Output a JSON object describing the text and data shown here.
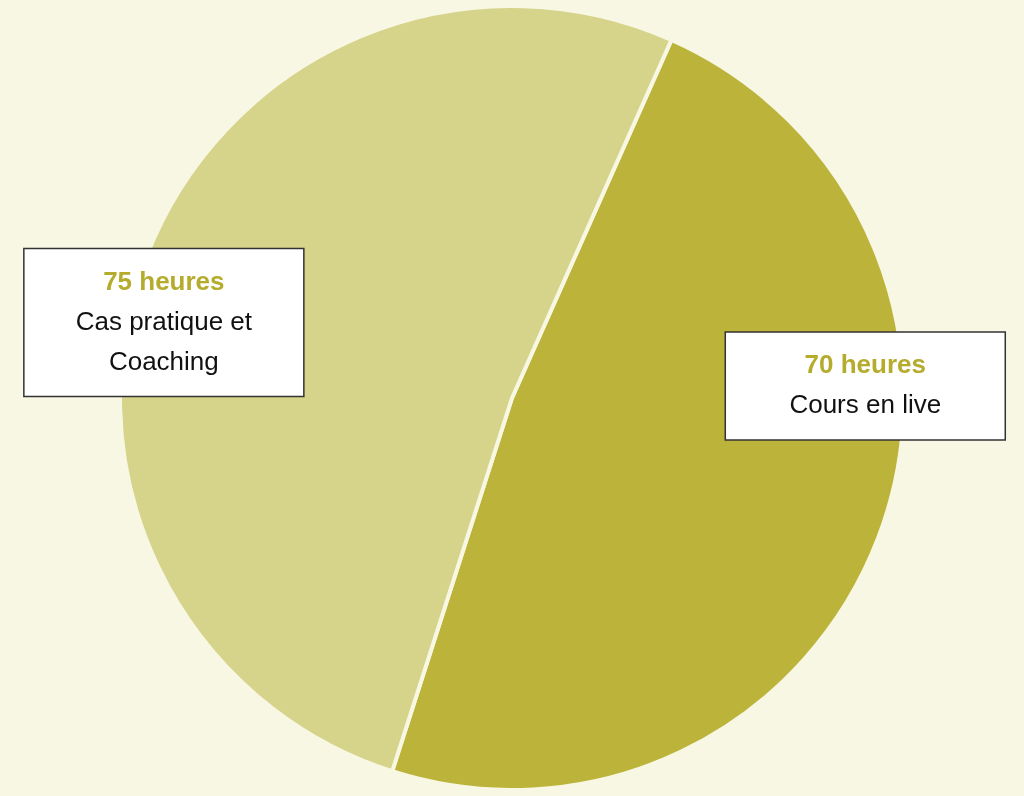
{
  "chart_data": {
    "type": "pie",
    "categories": [
      "Cours en live",
      "Cas pratique et Coaching"
    ],
    "values": [
      70,
      75
    ],
    "colors": [
      "#bcb43a",
      "#d6d38a"
    ],
    "value_labels": [
      "70 heures",
      "75 heures"
    ],
    "legend": false
  }
}
